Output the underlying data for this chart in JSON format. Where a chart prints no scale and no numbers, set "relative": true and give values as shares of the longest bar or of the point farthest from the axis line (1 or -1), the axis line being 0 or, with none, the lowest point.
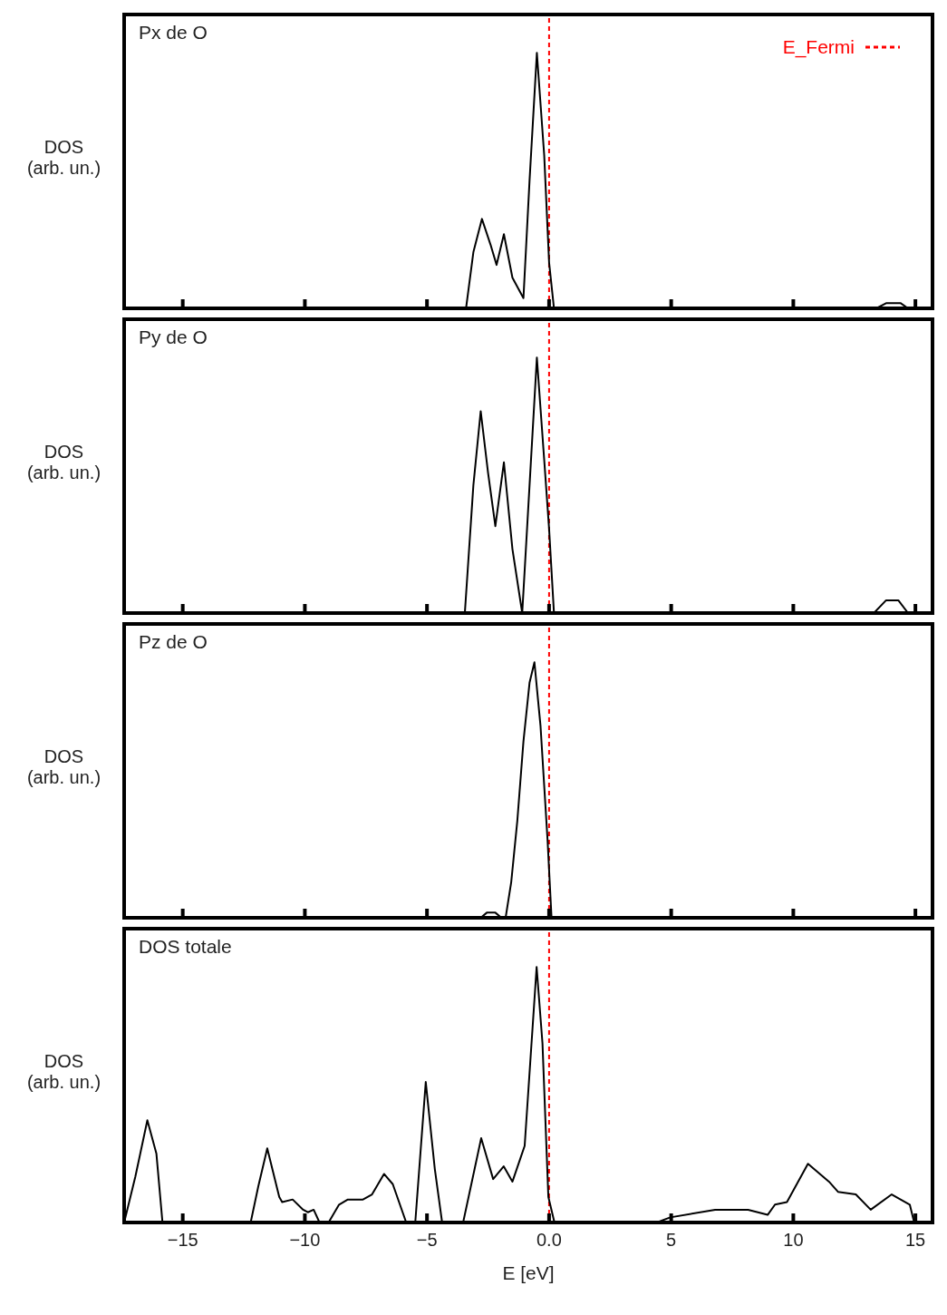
{
  "chart_data": [
    {
      "type": "line",
      "title": "Px de O",
      "ylabel": "DOS (arb. un.)",
      "relative": true,
      "xlim": [
        -17.4,
        15.7
      ],
      "xticks": [
        -15,
        -10,
        -5,
        0,
        5,
        10,
        15
      ],
      "tick_labels": false,
      "legend": "top right",
      "marker": "none",
      "line_style": "solid",
      "series": [
        {
          "color": "#000000",
          "x": [
            -17.4,
            -3.4,
            -3.1,
            -2.75,
            -2.4,
            -2.15,
            -1.85,
            -1.5,
            -1.05,
            -0.8,
            -0.5,
            -0.2,
            0,
            0.2,
            13.4,
            13.8,
            14.4,
            14.7,
            15.7
          ],
          "values": [
            0,
            0,
            0.22,
            0.35,
            0.25,
            0.17,
            0.29,
            0.12,
            0.04,
            0.5,
            1,
            0.6,
            0.18,
            0,
            0,
            0.02,
            0.02,
            0,
            0
          ]
        }
      ],
      "ref_lines": [
        {
          "axis": "x",
          "value": 0,
          "label": "E_Fermi",
          "color": "#ff0000",
          "line_style": "dashed"
        }
      ]
    },
    {
      "type": "line",
      "title": "Py de O",
      "ylabel": "DOS (arb. un.)",
      "relative": true,
      "xlim": [
        -17.4,
        15.7
      ],
      "xticks": [
        -15,
        -10,
        -5,
        0,
        5,
        10,
        15
      ],
      "tick_labels": false,
      "marker": "none",
      "line_style": "solid",
      "series": [
        {
          "color": "#000000",
          "x": [
            -17.4,
            -3.45,
            -3.1,
            -2.8,
            -2.5,
            -2.2,
            -1.85,
            -1.5,
            -1.1,
            -0.8,
            -0.5,
            -0.2,
            0,
            0.2,
            13.3,
            13.8,
            14.3,
            14.7,
            15.7
          ],
          "values": [
            0,
            0,
            0.5,
            0.79,
            0.55,
            0.34,
            0.59,
            0.25,
            0,
            0.5,
            1,
            0.6,
            0.33,
            0,
            0,
            0.05,
            0.05,
            0,
            0
          ]
        }
      ],
      "ref_lines": [
        {
          "axis": "x",
          "value": 0,
          "color": "#ff0000",
          "line_style": "dashed"
        }
      ]
    },
    {
      "type": "line",
      "title": "Pz de O",
      "ylabel": "DOS (arb. un.)",
      "relative": true,
      "xlim": [
        -17.4,
        15.7
      ],
      "xticks": [
        -15,
        -10,
        -5,
        0,
        5,
        10,
        15
      ],
      "tick_labels": false,
      "marker": "none",
      "line_style": "solid",
      "series": [
        {
          "color": "#000000",
          "x": [
            -17.4,
            -2.8,
            -2.55,
            -2.2,
            -1.95,
            -1.78,
            -1.55,
            -1.3,
            -1.05,
            -0.8,
            -0.6,
            -0.35,
            -0.06,
            0.1,
            15.7
          ],
          "values": [
            0,
            0,
            0.02,
            0.02,
            0,
            0,
            0.14,
            0.38,
            0.69,
            0.92,
            1,
            0.75,
            0.3,
            0,
            0
          ]
        }
      ],
      "ref_lines": [
        {
          "axis": "x",
          "value": 0,
          "color": "#ff0000",
          "line_style": "dashed"
        }
      ]
    },
    {
      "type": "line",
      "title": "DOS totale",
      "ylabel": "DOS (arb. un.)",
      "xlabel": "E [eV]",
      "relative": true,
      "xlim": [
        -17.4,
        15.7
      ],
      "xticks": [
        {
          "value": -15,
          "label": "−15"
        },
        {
          "value": -10,
          "label": "−10"
        },
        {
          "value": -5,
          "label": "−5"
        },
        {
          "value": 0,
          "label": "0.0"
        },
        5,
        10,
        15
      ],
      "tick_labels": "x",
      "marker": "none",
      "line_style": "solid",
      "series": [
        {
          "color": "#000000",
          "x": [
            -17.4,
            -16.94,
            -16.45,
            -16.08,
            -15.83,
            -12.22,
            -11.91,
            -11.54,
            -11.05,
            -10.93,
            -10.5,
            -10.07,
            -9.88,
            -9.64,
            -9.4,
            -9.03,
            -8.6,
            -8.24,
            -7.62,
            -7.25,
            -6.76,
            -6.4,
            -5.85,
            -5.48,
            -5.05,
            -4.68,
            -4.38,
            -3.52,
            -2.78,
            -2.29,
            -1.86,
            -1.5,
            -1.0,
            -0.51,
            -0.27,
            -0.03,
            0.22,
            4.41,
            4.96,
            6.8,
            8.15,
            8.95,
            9.25,
            9.74,
            10.6,
            11.46,
            11.83,
            12.56,
            13.17,
            14.03,
            14.77,
            14.95,
            15.7
          ],
          "values": [
            0,
            0.18,
            0.4,
            0.27,
            0,
            0,
            0.14,
            0.29,
            0.1,
            0.08,
            0.09,
            0.05,
            0.04,
            0.05,
            0,
            0,
            0.07,
            0.09,
            0.09,
            0.11,
            0.19,
            0.15,
            0,
            0,
            0.55,
            0.21,
            0,
            0,
            0.33,
            0.17,
            0.22,
            0.16,
            0.3,
            1,
            0.7,
            0.1,
            0,
            0,
            0.02,
            0.05,
            0.05,
            0.03,
            0.07,
            0.08,
            0.23,
            0.16,
            0.12,
            0.11,
            0.05,
            0.11,
            0.07,
            0,
            0
          ]
        }
      ],
      "ref_lines": [
        {
          "axis": "x",
          "value": 0,
          "color": "#ff0000",
          "line_style": "dashed"
        }
      ]
    }
  ]
}
